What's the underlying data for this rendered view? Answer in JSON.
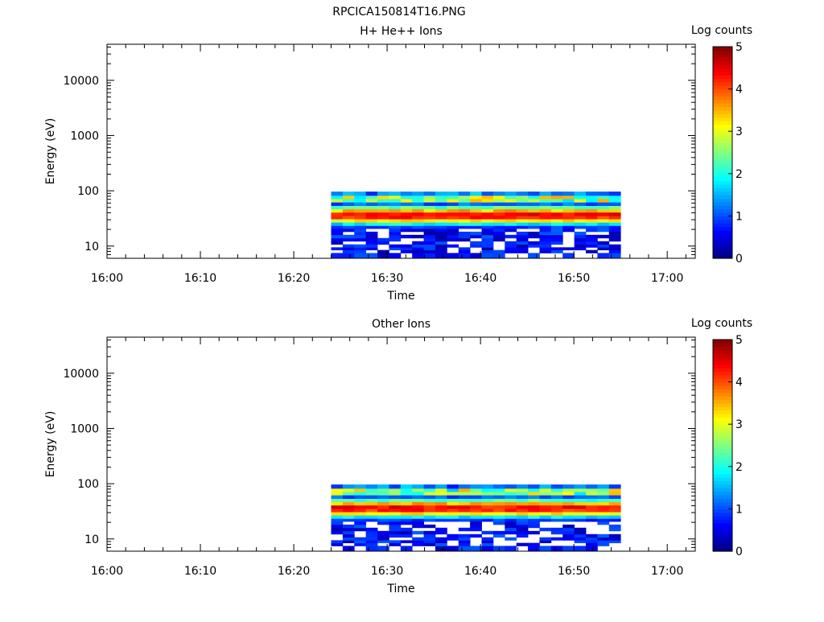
{
  "page": {
    "title": "RPCICA150814T16.PNG"
  },
  "colorbar_colors": [
    "#000080",
    "#0000ff",
    "#0080ff",
    "#00ffff",
    "#80ff80",
    "#ffff00",
    "#ff8000",
    "#ff0000",
    "#800000"
  ],
  "chart_data": [
    {
      "type": "heatmap",
      "title": "H+ He++ Ions",
      "xlabel": "Time",
      "ylabel": "Energy (eV)",
      "x_ticks": [
        "16:00",
        "16:10",
        "16:20",
        "16:30",
        "16:40",
        "16:50",
        "17:00"
      ],
      "y_ticks": [
        "10",
        "100",
        "1000",
        "10000"
      ],
      "y_scale": "log",
      "ylim": [
        6,
        45000
      ],
      "xlim_minutes": [
        0,
        63
      ],
      "data_time_range_minutes": [
        24,
        55
      ],
      "energy_bins": [
        7,
        8,
        9,
        10,
        11.5,
        13,
        15,
        17,
        19.5,
        22,
        25,
        29,
        33,
        38,
        44,
        50,
        58,
        67,
        77,
        88
      ],
      "time_bins": 25,
      "colorbar": {
        "label": "Log counts",
        "ticks": [
          "0",
          "1",
          "2",
          "3",
          "4",
          "5"
        ],
        "range": [
          0,
          5
        ]
      },
      "grid": false
    },
    {
      "type": "heatmap",
      "title": "Other Ions",
      "xlabel": "Time",
      "ylabel": "Energy (eV)",
      "x_ticks": [
        "16:00",
        "16:10",
        "16:20",
        "16:30",
        "16:40",
        "16:50",
        "17:00"
      ],
      "y_ticks": [
        "10",
        "100",
        "1000",
        "10000"
      ],
      "y_scale": "log",
      "ylim": [
        6,
        45000
      ],
      "xlim_minutes": [
        0,
        63
      ],
      "data_time_range_minutes": [
        24,
        55
      ],
      "energy_bins": [
        7,
        8,
        9,
        10,
        11.5,
        13,
        15,
        17,
        19.5,
        22,
        25,
        29,
        33,
        38,
        44,
        50,
        58,
        67,
        77,
        88
      ],
      "time_bins": 25,
      "colorbar": {
        "label": "Log counts",
        "ticks": [
          "0",
          "1",
          "2",
          "3",
          "4",
          "5"
        ],
        "range": [
          0,
          5
        ]
      },
      "grid": false
    }
  ]
}
